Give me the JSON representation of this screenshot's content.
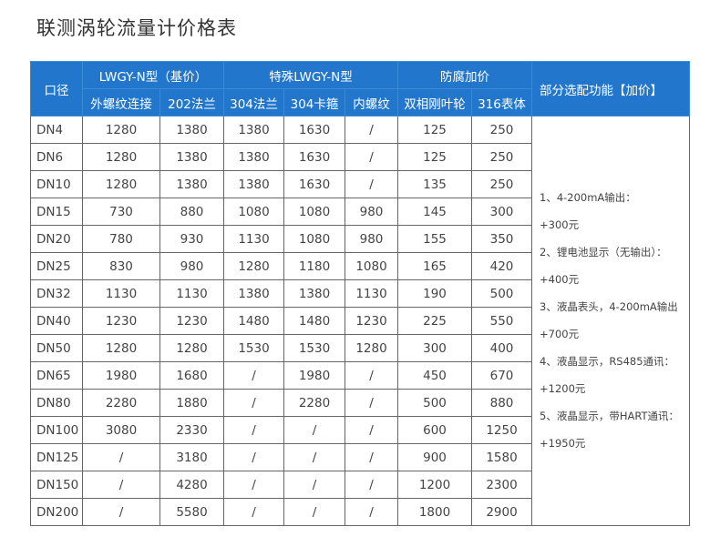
{
  "title": "联测涡轮流量计价格表",
  "header": {
    "size": "口径",
    "group_base": "LWGY-N型（基价）",
    "group_special": "特殊LWGY-N型",
    "group_anticorrosion": "防腐加价",
    "options": "部分选配功能【加价】",
    "columns": [
      "外螺纹连接",
      "202法兰",
      "304法兰",
      "304卡箍",
      "内螺纹",
      "双相刚叶轮",
      "316表体"
    ]
  },
  "rows": [
    [
      "DN4",
      "1280",
      "1380",
      "1380",
      "1630",
      "/",
      "125",
      "250"
    ],
    [
      "DN6",
      "1280",
      "1380",
      "1380",
      "1630",
      "/",
      "125",
      "250"
    ],
    [
      "DN10",
      "1280",
      "1380",
      "1380",
      "1630",
      "/",
      "135",
      "250"
    ],
    [
      "DN15",
      "730",
      "880",
      "1080",
      "1080",
      "980",
      "145",
      "300"
    ],
    [
      "DN20",
      "780",
      "930",
      "1130",
      "1080",
      "980",
      "155",
      "350"
    ],
    [
      "DN25",
      "830",
      "980",
      "1280",
      "1180",
      "1080",
      "165",
      "420"
    ],
    [
      "DN32",
      "1130",
      "1130",
      "1380",
      "1380",
      "1130",
      "190",
      "500"
    ],
    [
      "DN40",
      "1230",
      "1230",
      "1480",
      "1480",
      "1230",
      "225",
      "550"
    ],
    [
      "DN50",
      "1280",
      "1280",
      "1530",
      "1530",
      "1280",
      "300",
      "400"
    ],
    [
      "DN65",
      "1980",
      "1680",
      "/",
      "1980",
      "/",
      "450",
      "670"
    ],
    [
      "DN80",
      "2280",
      "1880",
      "/",
      "2280",
      "/",
      "500",
      "880"
    ],
    [
      "DN100",
      "3080",
      "2330",
      "/",
      "/",
      "/",
      "600",
      "1250"
    ],
    [
      "DN125",
      "/",
      "3180",
      "/",
      "/",
      "/",
      "900",
      "1580"
    ],
    [
      "DN150",
      "/",
      "4280",
      "/",
      "/",
      "/",
      "1200",
      "2300"
    ],
    [
      "DN200",
      "/",
      "5580",
      "/",
      "/",
      "/",
      "1800",
      "2900"
    ]
  ],
  "notes": [
    "1、4-200mA输出：",
    "+300元",
    "2、锂电池显示（无输出）：",
    "+400元",
    "3、液晶表头，4-200mA输出",
    "+700元",
    "4、液晶显示，RS485通讯：",
    "+1200元",
    "5、液晶显示，带HART通讯：",
    "+1950元"
  ],
  "colors": {
    "header_bg": "#2277cc",
    "border": "#666666"
  }
}
